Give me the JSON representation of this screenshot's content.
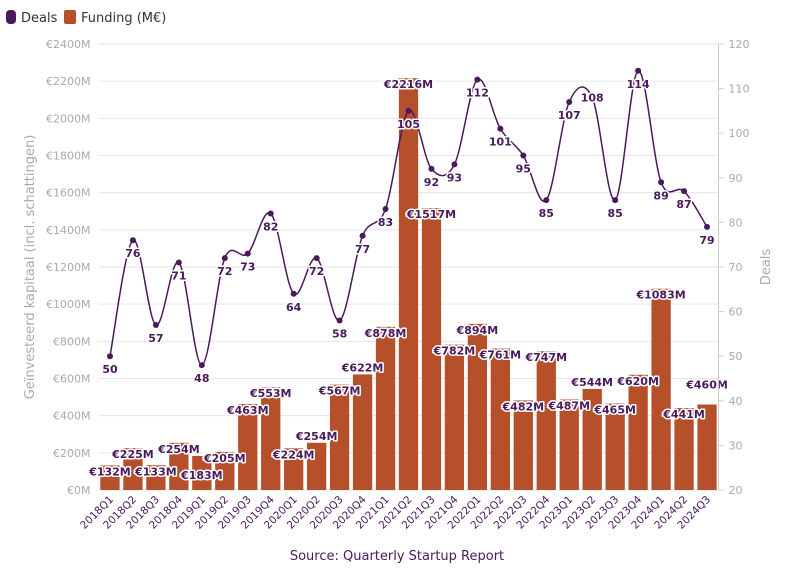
{
  "chart_data": {
    "type": "bar+line",
    "categories": [
      "2018Q1",
      "2018Q2",
      "2018Q3",
      "2018Q4",
      "2019Q1",
      "2019Q2",
      "2019Q3",
      "2019Q4",
      "2020Q1",
      "2020Q2",
      "2020Q3",
      "2020Q4",
      "2021Q1",
      "2021Q2",
      "2021Q3",
      "2021Q4",
      "2022Q1",
      "2022Q2",
      "2022Q3",
      "2022Q4",
      "2023Q1",
      "2023Q2",
      "2023Q3",
      "2023Q4",
      "2024Q1",
      "2024Q2",
      "2024Q3"
    ],
    "series": [
      {
        "name": "Funding (M€)",
        "type": "bar",
        "axis": "left",
        "color": "#b5502a",
        "values": [
          132,
          225,
          133,
          254,
          183,
          205,
          463,
          553,
          224,
          254,
          567,
          622,
          878,
          2216,
          1517,
          782,
          894,
          761,
          482,
          747,
          487,
          544,
          465,
          620,
          1083,
          441,
          460
        ]
      },
      {
        "name": "Deals",
        "type": "line",
        "axis": "right",
        "color": "#4a1a5c",
        "values": [
          50,
          76,
          57,
          71,
          48,
          72,
          73,
          82,
          64,
          72,
          58,
          77,
          83,
          105,
          92,
          93,
          112,
          101,
          95,
          85,
          107,
          108,
          85,
          114,
          89,
          87,
          79
        ]
      }
    ],
    "ylabel": "Geïnvesteerd kapitaal (incl. schattingen)",
    "y2label": "Deals",
    "ylim": [
      0,
      2400
    ],
    "y2lim": [
      20,
      120
    ],
    "yticks": [
      "€0M",
      "€200M",
      "€400M",
      "€600M",
      "€800M",
      "€1000M",
      "€1200M",
      "€1400M",
      "€1600M",
      "€1800M",
      "€2000M",
      "€2200M",
      "€2400M"
    ],
    "y2ticks": [
      "20",
      "30",
      "40",
      "50",
      "60",
      "70",
      "80",
      "90",
      "100",
      "110",
      "120"
    ],
    "grid": true,
    "legend_position": "top-left",
    "source": "Source: Quarterly Startup Report"
  }
}
